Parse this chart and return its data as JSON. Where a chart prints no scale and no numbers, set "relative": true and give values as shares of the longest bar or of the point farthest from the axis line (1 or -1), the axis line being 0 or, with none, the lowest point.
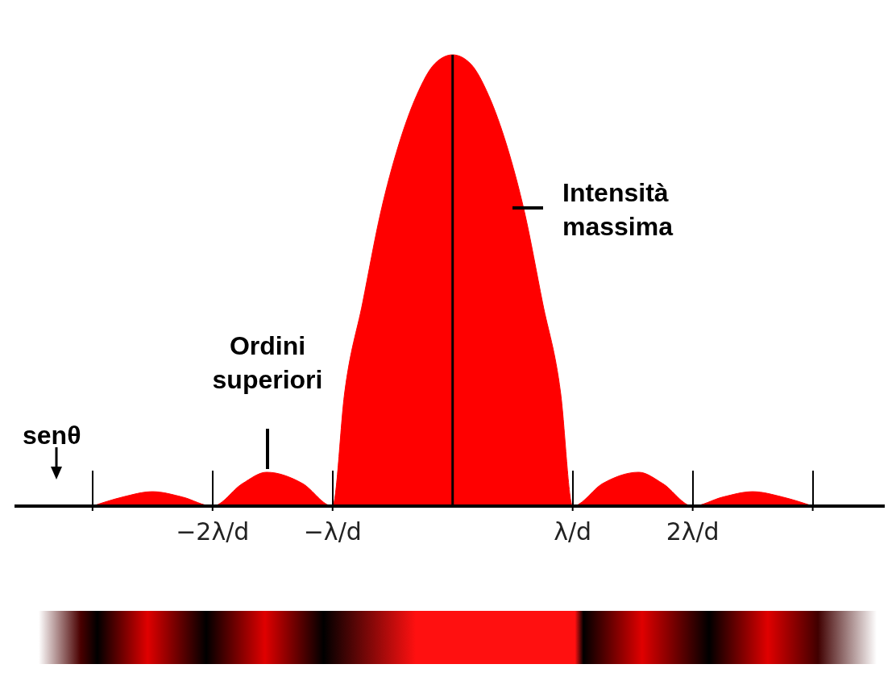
{
  "chart_data": {
    "type": "area",
    "relative": true,
    "xlabel": "senθ",
    "color": "#ff0000",
    "x": [
      -3,
      -2.75,
      -2.5,
      -2.25,
      -2,
      -1.75,
      -1.55,
      -1.25,
      -1,
      -0.9,
      -0.75,
      -0.6,
      -0.45,
      -0.3,
      -0.15,
      0,
      0.15,
      0.3,
      0.45,
      0.6,
      0.75,
      0.9,
      1,
      1.25,
      1.55,
      1.75,
      2,
      2.25,
      2.5,
      2.75,
      3
    ],
    "values": [
      0,
      0.02,
      0.032,
      0.02,
      0,
      0.05,
      0.075,
      0.05,
      0,
      0.25,
      0.45,
      0.65,
      0.8,
      0.91,
      0.98,
      1,
      0.98,
      0.91,
      0.8,
      0.65,
      0.45,
      0.25,
      0,
      0.05,
      0.075,
      0.05,
      0,
      0.02,
      0.032,
      0.02,
      0
    ],
    "xlim": [
      -3.65,
      3.6
    ],
    "xticks": [
      {
        "value": -3,
        "label": null
      },
      {
        "value": -2,
        "label": "−2λ/d"
      },
      {
        "value": -1,
        "label": "−λ/d"
      },
      {
        "value": 1,
        "label": "λ/d"
      },
      {
        "value": 2,
        "label": "2λ/d"
      },
      {
        "value": 3,
        "label": null
      }
    ],
    "ref_lines": [
      {
        "axis": "x",
        "value": 0
      }
    ],
    "annotations": [
      "Ordini superiori",
      "Intensità massima"
    ]
  }
}
